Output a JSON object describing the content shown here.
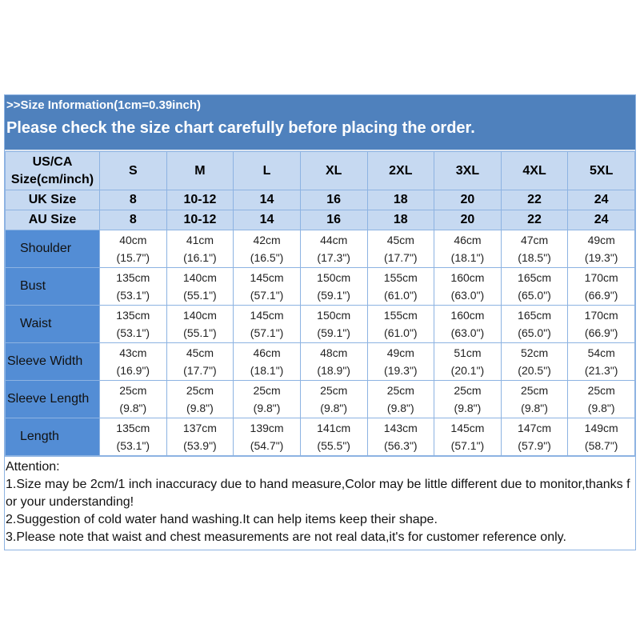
{
  "header": {
    "info": ">>Size Information(1cm=0.39inch)",
    "notice": "Please check the size chart carefully before placing the order."
  },
  "colors": {
    "banner": "#4f81bd",
    "header_cells": "#c6d9f1",
    "row_labels": "#538dd5",
    "border": "#8db3e2"
  },
  "table": {
    "size_label": "US/CA Size(cm/inch)",
    "sizes": [
      "S",
      "M",
      "L",
      "XL",
      "2XL",
      "3XL",
      "4XL",
      "5XL"
    ],
    "uk_label": "UK Size",
    "uk": [
      "8",
      "10-12",
      "14",
      "16",
      "18",
      "20",
      "22",
      "24"
    ],
    "au_label": "AU Size",
    "au": [
      "8",
      "10-12",
      "14",
      "16",
      "18",
      "20",
      "22",
      "24"
    ],
    "rows": [
      {
        "label": "Shoulder",
        "cm": [
          "40cm",
          "41cm",
          "42cm",
          "44cm",
          "45cm",
          "46cm",
          "47cm",
          "49cm"
        ],
        "inch": [
          "(15.7\")",
          "(16.1\")",
          "(16.5\")",
          "(17.3\")",
          "(17.7\")",
          "(18.1\")",
          "(18.5\")",
          "(19.3\")"
        ]
      },
      {
        "label": "Bust",
        "cm": [
          "135cm",
          "140cm",
          "145cm",
          "150cm",
          "155cm",
          "160cm",
          "165cm",
          "170cm"
        ],
        "inch": [
          "(53.1\")",
          "(55.1\")",
          "(57.1\")",
          "(59.1\")",
          "(61.0\")",
          "(63.0\")",
          "(65.0\")",
          "(66.9\")"
        ]
      },
      {
        "label": "Waist",
        "cm": [
          "135cm",
          "140cm",
          "145cm",
          "150cm",
          "155cm",
          "160cm",
          "165cm",
          "170cm"
        ],
        "inch": [
          "(53.1\")",
          "(55.1\")",
          "(57.1\")",
          "(59.1\")",
          "(61.0\")",
          "(63.0\")",
          "(65.0\")",
          "(66.9\")"
        ]
      },
      {
        "label": "Sleeve Width",
        "cm": [
          "43cm",
          "45cm",
          "46cm",
          "48cm",
          "49cm",
          "51cm",
          "52cm",
          "54cm"
        ],
        "inch": [
          "(16.9\")",
          "(17.7\")",
          "(18.1\")",
          "(18.9\")",
          "(19.3\")",
          "(20.1\")",
          "(20.5\")",
          "(21.3\")"
        ]
      },
      {
        "label": "Sleeve Length",
        "cm": [
          "25cm",
          "25cm",
          "25cm",
          "25cm",
          "25cm",
          "25cm",
          "25cm",
          "25cm"
        ],
        "inch": [
          "(9.8\")",
          "(9.8\")",
          "(9.8\")",
          "(9.8\")",
          "(9.8\")",
          "(9.8\")",
          "(9.8\")",
          "(9.8\")"
        ]
      },
      {
        "label": "Length",
        "cm": [
          "135cm",
          "137cm",
          "139cm",
          "141cm",
          "143cm",
          "145cm",
          "147cm",
          "149cm"
        ],
        "inch": [
          "(53.1\")",
          "(53.9\")",
          "(54.7\")",
          "(55.5\")",
          "(56.3\")",
          "(57.1\")",
          "(57.9\")",
          "(58.7\")"
        ]
      }
    ]
  },
  "notes": {
    "title": "Attention:",
    "items": [
      "1.Size may be 2cm/1 inch inaccuracy due to hand measure,Color may be little different due to monitor,thanks for your understanding!",
      "2.Suggestion of cold water hand washing.It can help items keep their shape.",
      "3.Please note that waist and chest measurements are not real data,it's for customer reference only."
    ]
  }
}
